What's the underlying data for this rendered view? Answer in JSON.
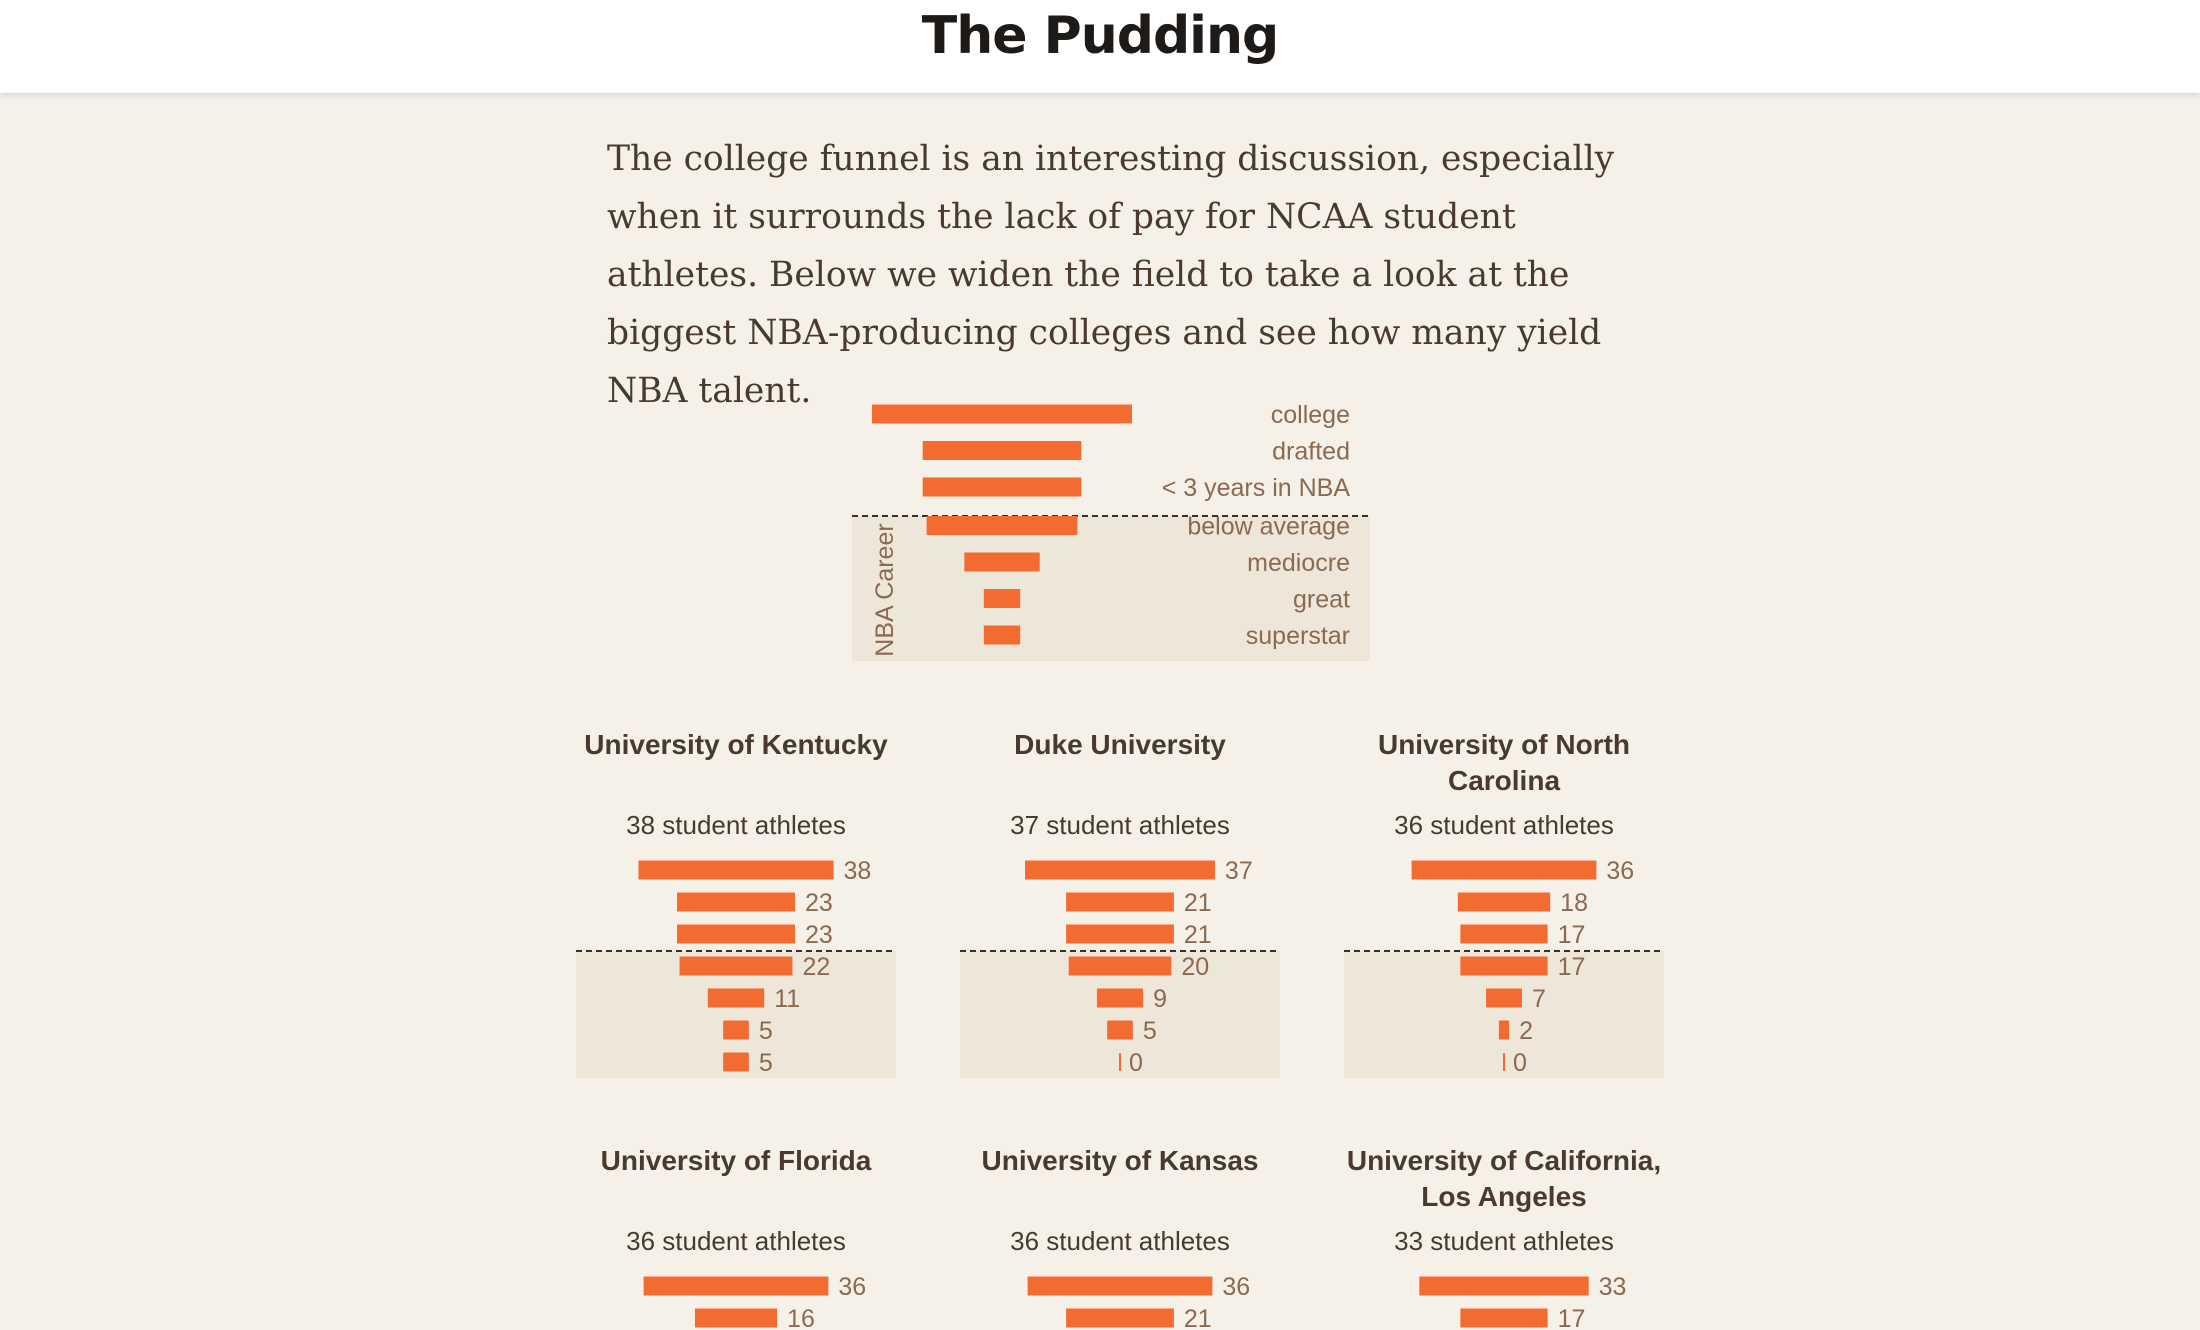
{
  "header": {
    "logo": "The Pudding"
  },
  "intro": {
    "text": "The college funnel is an interesting discussion, especially when it surrounds the lack of pay for NCAA student athletes. Below we widen the field to take a look at the biggest NBA-producing colleges and see how many yield NBA talent."
  },
  "colors": {
    "bar": "#f26b30",
    "career_band": "#efe6da",
    "background": "#f6f1e8",
    "text": "#4a3a2e",
    "label": "#8a6a50"
  },
  "legend": {
    "stages": [
      "college",
      "drafted",
      "< 3 years in NBA",
      "below average",
      "mediocre",
      "great",
      "superstar"
    ],
    "relative_values": [
      1.0,
      0.61,
      0.61,
      0.58,
      0.29,
      0.14,
      0.14
    ],
    "career_label": "NBA Career"
  },
  "chart_data": {
    "type": "bar",
    "orientation": "horizontal-centered-funnel",
    "stages": [
      "college",
      "drafted",
      "< 3 years in NBA",
      "below average",
      "mediocre",
      "great",
      "superstar"
    ],
    "subtitle_suffix": "student athletes",
    "colleges": [
      {
        "name": "University of Kentucky",
        "athletes": 38,
        "values": [
          38,
          23,
          23,
          22,
          11,
          5,
          5
        ]
      },
      {
        "name": "Duke University",
        "athletes": 37,
        "values": [
          37,
          21,
          21,
          20,
          9,
          5,
          0
        ]
      },
      {
        "name": "University of North Carolina",
        "athletes": 36,
        "values": [
          36,
          18,
          17,
          17,
          7,
          2,
          0
        ]
      },
      {
        "name": "University of Florida",
        "athletes": 36,
        "values": [
          36,
          16
        ]
      },
      {
        "name": "University of Kansas",
        "athletes": 36,
        "values": [
          36,
          21
        ]
      },
      {
        "name": "University of California, Los Angeles",
        "athletes": 33,
        "values": [
          33,
          17
        ]
      }
    ]
  }
}
